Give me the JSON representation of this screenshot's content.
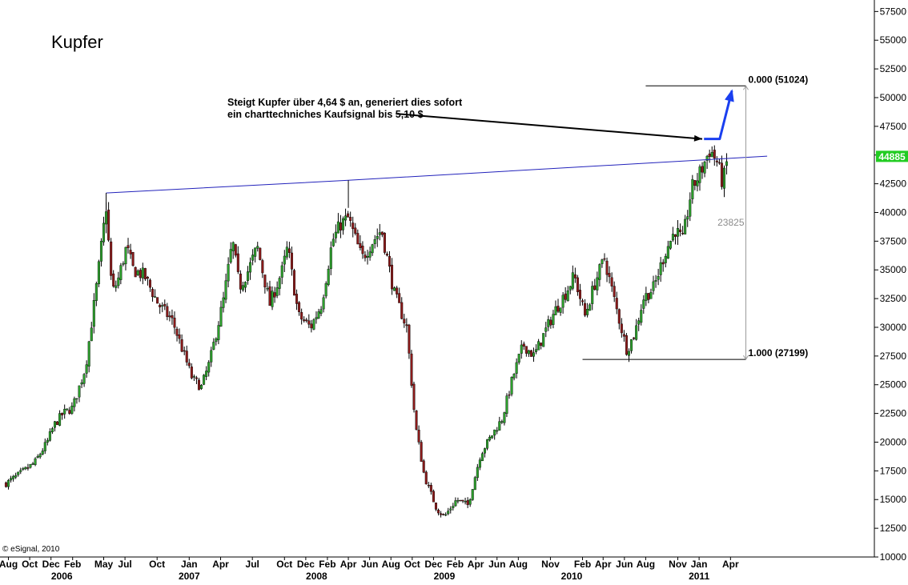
{
  "title": "Kupfer",
  "annotation": {
    "line1": "Steigt Kupfer über 4,64 $ an, generiert dies sofort",
    "line2": "ein charttechniches Kaufsignal bis 5,10 $"
  },
  "credit": "© eSignal, 2010",
  "colors": {
    "up": "#2ca02c",
    "down": "#8b1a1a",
    "trendline": "#2222bb",
    "projection_arrow": "#1a3ff0",
    "price_tag": "#22cc22",
    "fib": "#000000",
    "axis": "#000000"
  },
  "chart_data": {
    "type": "candlestick",
    "instrument": "Kupfer",
    "yaxis": {
      "position": "right",
      "ylim": [
        10000,
        58500
      ],
      "ticks": [
        10000,
        12500,
        15000,
        17500,
        20000,
        22500,
        25000,
        27500,
        30000,
        32500,
        35000,
        37500,
        40000,
        42500,
        45000,
        47500,
        50000,
        52500,
        55000,
        57500
      ],
      "tick_labels": [
        "10000",
        "12500",
        "15000",
        "17500",
        "20000",
        "22500",
        "25000",
        "27500",
        "30000",
        "32500",
        "35000",
        "37500",
        "40000",
        "42500",
        "45000",
        "47500",
        "50000",
        "52500",
        "55000",
        "57500"
      ]
    },
    "xaxis": {
      "ticks": [
        {
          "label": "Aug",
          "date": "2005-08"
        },
        {
          "label": "Oct",
          "date": "2005-10"
        },
        {
          "label": "Dec",
          "date": "2005-12"
        },
        {
          "label": "Feb",
          "date": "2006-02"
        },
        {
          "label": "May",
          "date": "2006-05"
        },
        {
          "label": "Jul",
          "date": "2006-07"
        },
        {
          "label": "Oct",
          "date": "2006-10"
        },
        {
          "label": "Jan",
          "date": "2007-01"
        },
        {
          "label": "Apr",
          "date": "2007-04"
        },
        {
          "label": "Jul",
          "date": "2007-07"
        },
        {
          "label": "Oct",
          "date": "2007-10"
        },
        {
          "label": "Dec",
          "date": "2007-12"
        },
        {
          "label": "Feb",
          "date": "2008-02"
        },
        {
          "label": "Apr",
          "date": "2008-04"
        },
        {
          "label": "Jun",
          "date": "2008-06"
        },
        {
          "label": "Aug",
          "date": "2008-08"
        },
        {
          "label": "Oct",
          "date": "2008-10"
        },
        {
          "label": "Dec",
          "date": "2008-12"
        },
        {
          "label": "Feb",
          "date": "2009-02"
        },
        {
          "label": "Apr",
          "date": "2009-04"
        },
        {
          "label": "Jun",
          "date": "2009-06"
        },
        {
          "label": "Aug",
          "date": "2009-08"
        },
        {
          "label": "Nov",
          "date": "2009-11"
        },
        {
          "label": "Feb",
          "date": "2010-02"
        },
        {
          "label": "Apr",
          "date": "2010-04"
        },
        {
          "label": "Jun",
          "date": "2010-06"
        },
        {
          "label": "Aug",
          "date": "2010-08"
        },
        {
          "label": "Nov",
          "date": "2010-11"
        },
        {
          "label": "Jan",
          "date": "2011-01"
        },
        {
          "label": "Apr",
          "date": "2011-04"
        }
      ],
      "years": [
        {
          "label": "2006",
          "date": "2006-01"
        },
        {
          "label": "2007",
          "date": "2007-01"
        },
        {
          "label": "2008",
          "date": "2008-01"
        },
        {
          "label": "2009",
          "date": "2009-01"
        },
        {
          "label": "2010",
          "date": "2010-01"
        },
        {
          "label": "2011",
          "date": "2011-01"
        }
      ]
    },
    "close_path": [
      {
        "date": "2005-07-25",
        "price": 16400
      },
      {
        "date": "2005-09-01",
        "price": 17200
      },
      {
        "date": "2005-10-15",
        "price": 18200
      },
      {
        "date": "2005-11-20",
        "price": 20000
      },
      {
        "date": "2005-12-10",
        "price": 21500
      },
      {
        "date": "2006-01-05",
        "price": 22500
      },
      {
        "date": "2006-02-01",
        "price": 23000
      },
      {
        "date": "2006-03-10",
        "price": 26500
      },
      {
        "date": "2006-04-10",
        "price": 33500
      },
      {
        "date": "2006-05-08",
        "price": 40500
      },
      {
        "date": "2006-05-25",
        "price": 33000
      },
      {
        "date": "2006-06-10",
        "price": 34000
      },
      {
        "date": "2006-07-05",
        "price": 37000
      },
      {
        "date": "2006-07-25",
        "price": 35000
      },
      {
        "date": "2006-08-25",
        "price": 34500
      },
      {
        "date": "2006-10-05",
        "price": 32000
      },
      {
        "date": "2006-11-15",
        "price": 30500
      },
      {
        "date": "2007-01-10",
        "price": 25500
      },
      {
        "date": "2007-02-05",
        "price": 24800
      },
      {
        "date": "2007-03-01",
        "price": 27000
      },
      {
        "date": "2007-04-10",
        "price": 32500
      },
      {
        "date": "2007-05-05",
        "price": 37500
      },
      {
        "date": "2007-05-25",
        "price": 33500
      },
      {
        "date": "2007-06-20",
        "price": 35000
      },
      {
        "date": "2007-07-15",
        "price": 37000
      },
      {
        "date": "2007-08-20",
        "price": 32000
      },
      {
        "date": "2007-09-25",
        "price": 35000
      },
      {
        "date": "2007-10-10",
        "price": 37000
      },
      {
        "date": "2007-11-10",
        "price": 31000
      },
      {
        "date": "2007-12-15",
        "price": 30000
      },
      {
        "date": "2008-01-15",
        "price": 32000
      },
      {
        "date": "2008-02-15",
        "price": 37500
      },
      {
        "date": "2008-03-10",
        "price": 39000
      },
      {
        "date": "2008-04-01",
        "price": 39500
      },
      {
        "date": "2008-05-10",
        "price": 36000
      },
      {
        "date": "2008-06-10",
        "price": 37500
      },
      {
        "date": "2008-07-05",
        "price": 38500
      },
      {
        "date": "2008-08-10",
        "price": 33000
      },
      {
        "date": "2008-09-15",
        "price": 30000
      },
      {
        "date": "2008-10-10",
        "price": 21500
      },
      {
        "date": "2008-11-05",
        "price": 17000
      },
      {
        "date": "2008-12-10",
        "price": 14200
      },
      {
        "date": "2009-01-01",
        "price": 13500
      },
      {
        "date": "2009-02-05",
        "price": 15000
      },
      {
        "date": "2009-03-10",
        "price": 14500
      },
      {
        "date": "2009-04-15",
        "price": 19000
      },
      {
        "date": "2009-05-15",
        "price": 20500
      },
      {
        "date": "2009-06-15",
        "price": 22000
      },
      {
        "date": "2009-07-15",
        "price": 25500
      },
      {
        "date": "2009-08-15",
        "price": 28500
      },
      {
        "date": "2009-09-15",
        "price": 27500
      },
      {
        "date": "2009-10-15",
        "price": 29500
      },
      {
        "date": "2009-11-15",
        "price": 31500
      },
      {
        "date": "2009-12-15",
        "price": 33000
      },
      {
        "date": "2010-01-08",
        "price": 34500
      },
      {
        "date": "2010-02-08",
        "price": 31000
      },
      {
        "date": "2010-03-10",
        "price": 34000
      },
      {
        "date": "2010-04-05",
        "price": 36000
      },
      {
        "date": "2010-05-10",
        "price": 31500
      },
      {
        "date": "2010-06-08",
        "price": 28000
      },
      {
        "date": "2010-07-01",
        "price": 29500
      },
      {
        "date": "2010-07-25",
        "price": 32500
      },
      {
        "date": "2010-08-25",
        "price": 33500
      },
      {
        "date": "2010-09-25",
        "price": 36500
      },
      {
        "date": "2010-10-25",
        "price": 38500
      },
      {
        "date": "2010-11-15",
        "price": 37500
      },
      {
        "date": "2010-12-10",
        "price": 42000
      },
      {
        "date": "2011-01-05",
        "price": 43500
      },
      {
        "date": "2011-02-01",
        "price": 45500
      },
      {
        "date": "2011-02-20",
        "price": 44500
      },
      {
        "date": "2011-03-10",
        "price": 42500
      },
      {
        "date": "2011-03-25",
        "price": 44885
      }
    ],
    "last_price": {
      "value": 44885,
      "label": "44885"
    },
    "trendline": {
      "points": [
        {
          "date": "2006-05-08",
          "price": 41700
        },
        {
          "date": "2008-04-01",
          "price": 42800
        },
        {
          "date": "2011-07-15",
          "price": 44900
        }
      ]
    },
    "fibonacci": {
      "top": {
        "date_start": "2010-08-01",
        "date_end": "2011-05-15",
        "price": 51024,
        "label": "0.000 (51024)"
      },
      "bottom": {
        "date_start": "2010-02-01",
        "date_end": "2011-05-15",
        "price": 27199,
        "label": "1.000 (27199)"
      },
      "range_label": "23825"
    },
    "projection_arrow": {
      "points": [
        {
          "date": "2011-01-15",
          "price": 46400
        },
        {
          "date": "2011-03-01",
          "price": 46400
        },
        {
          "date": "2011-04-05",
          "price": 50600
        }
      ]
    },
    "pointer_arrow": {
      "from": {
        "date": "2008-08-15",
        "price": 48600
      },
      "to": {
        "date": "2011-01-10",
        "price": 46400
      }
    },
    "grid": false,
    "legend": "none"
  }
}
